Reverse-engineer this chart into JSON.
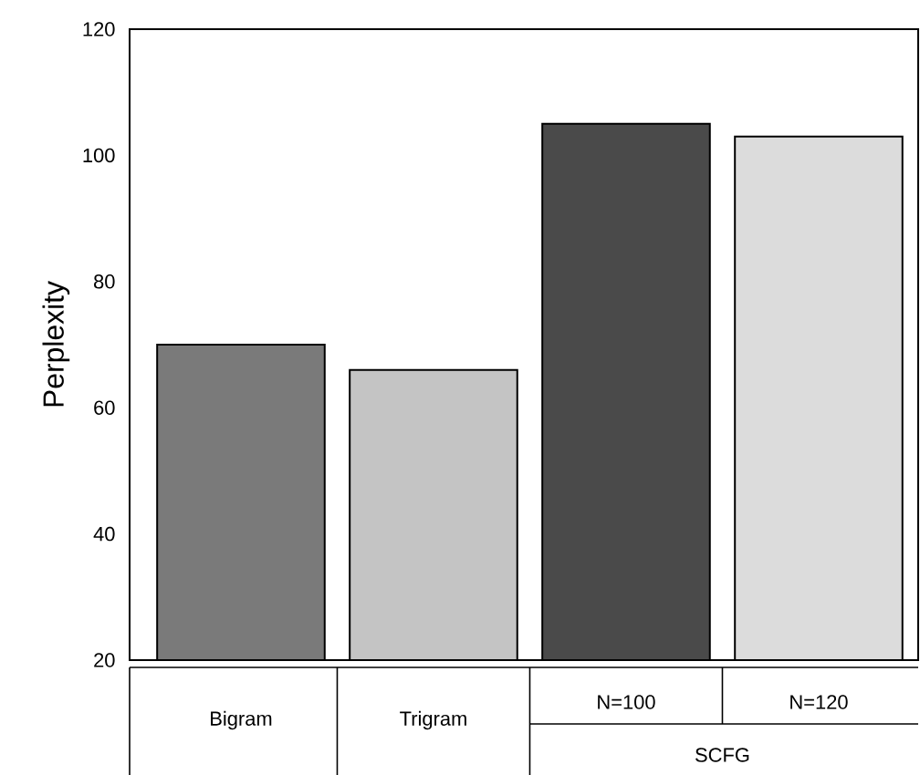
{
  "chart_data": {
    "type": "bar",
    "ylabel": "Perplexity",
    "categories": [
      "Bigram",
      "Trigram",
      "N=100",
      "N=120"
    ],
    "values": [
      70,
      66,
      105,
      103
    ],
    "colors": [
      "#7a7a7a",
      "#c4c4c4",
      "#4a4a4a",
      "#dcdcdc"
    ],
    "ylim": [
      20,
      120
    ],
    "yticks": [
      20,
      40,
      60,
      80,
      100,
      120
    ],
    "annotations": [
      "SCFG"
    ]
  }
}
